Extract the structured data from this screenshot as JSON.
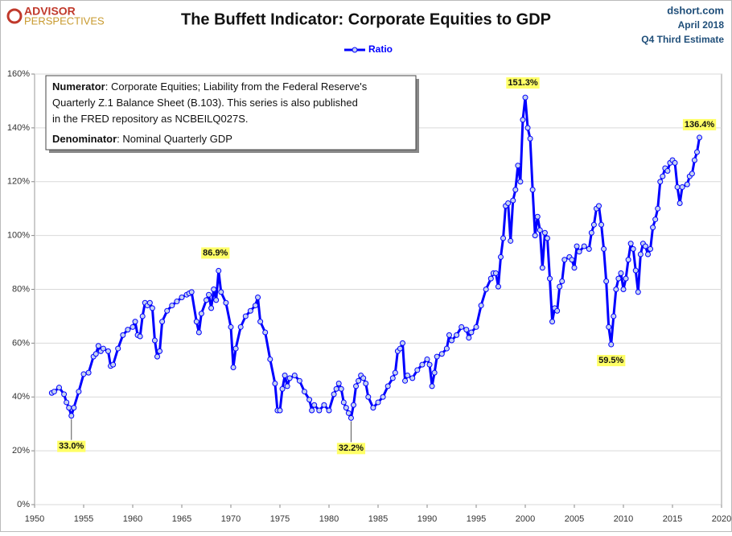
{
  "chart_data": {
    "type": "line",
    "title": "The Buffett Indicator: Corporate Equities to GDP",
    "logo": [
      "ADVISOR",
      "PERSPECTIVES"
    ],
    "source": [
      "dshort.com",
      "April 2018",
      "Q4 Third Estimate"
    ],
    "note": {
      "numerator_label": "Numerator",
      "numerator_lines": [
        ": Corporate Equities; Liability from the Federal Reserve's",
        "Quarterly Z.1 Balance Sheet (B.103). This series is also published",
        "in the FRED repository  as NCBEILQ027S."
      ],
      "denominator_label": "Denominator",
      "denominator_text": ": Nominal Quarterly GDP"
    },
    "xlim": [
      1950,
      2020
    ],
    "xticks": [
      1950,
      1955,
      1960,
      1965,
      1970,
      1975,
      1980,
      1985,
      1990,
      1995,
      2000,
      2005,
      2010,
      2015,
      2020
    ],
    "ylim": [
      0,
      160
    ],
    "yticks": [
      {
        "value": 0,
        "label": "0%"
      },
      {
        "value": 20,
        "label": "20%"
      },
      {
        "value": 40,
        "label": "40%"
      },
      {
        "value": 60,
        "label": "60%"
      },
      {
        "value": 80,
        "label": "80%"
      },
      {
        "value": 100,
        "label": "100%"
      },
      {
        "value": 120,
        "label": "120%"
      },
      {
        "value": 140,
        "label": "140%"
      },
      {
        "value": 160,
        "label": "160%"
      }
    ],
    "grid": true,
    "legend": "top",
    "x": [
      1951.75,
      1952,
      1952.5,
      1953,
      1953.25,
      1953.5,
      1953.75,
      1954,
      1954.5,
      1955,
      1955.5,
      1956,
      1956.25,
      1956.5,
      1956.75,
      1957,
      1957.5,
      1957.75,
      1958,
      1958.5,
      1959,
      1959.5,
      1960,
      1960.25,
      1960.5,
      1960.75,
      1961,
      1961.25,
      1961.5,
      1961.75,
      1962,
      1962.25,
      1962.5,
      1962.75,
      1963,
      1963.5,
      1964,
      1964.5,
      1965,
      1965.5,
      1965.75,
      1966,
      1966.5,
      1966.75,
      1967,
      1967.5,
      1967.75,
      1968,
      1968.25,
      1968.5,
      1968.75,
      1969,
      1969.5,
      1970,
      1970.25,
      1970.5,
      1971,
      1971.5,
      1972,
      1972.5,
      1972.75,
      1973,
      1973.5,
      1974,
      1974.5,
      1974.75,
      1975,
      1975.25,
      1975.5,
      1975.75,
      1976,
      1976.5,
      1977,
      1977.5,
      1978,
      1978.25,
      1978.5,
      1979,
      1979.5,
      1980,
      1980.5,
      1980.75,
      1981,
      1981.25,
      1981.5,
      1981.75,
      1982,
      1982.25,
      1982.5,
      1982.75,
      1983,
      1983.25,
      1983.5,
      1983.75,
      1984,
      1984.5,
      1985,
      1985.5,
      1986,
      1986.5,
      1986.75,
      1987,
      1987.25,
      1987.5,
      1987.75,
      1988,
      1988.5,
      1989,
      1989.5,
      1990,
      1990.25,
      1990.5,
      1990.75,
      1991,
      1991.5,
      1992,
      1992.25,
      1992.5,
      1993,
      1993.5,
      1994,
      1994.25,
      1994.5,
      1995,
      1995.5,
      1996,
      1996.5,
      1996.75,
      1997,
      1997.25,
      1997.5,
      1997.75,
      1998,
      1998.25,
      1998.5,
      1998.75,
      1999,
      1999.25,
      1999.5,
      1999.75,
      2000,
      2000.25,
      2000.5,
      2000.75,
      2001,
      2001.25,
      2001.5,
      2001.75,
      2002,
      2002.25,
      2002.5,
      2002.75,
      2003,
      2003.25,
      2003.5,
      2003.75,
      2004,
      2004.5,
      2004.75,
      2005,
      2005.25,
      2005.5,
      2006,
      2006.5,
      2006.75,
      2007,
      2007.25,
      2007.5,
      2007.75,
      2008,
      2008.25,
      2008.5,
      2008.75,
      2009,
      2009.25,
      2009.5,
      2009.75,
      2010,
      2010.25,
      2010.5,
      2010.75,
      2011,
      2011.25,
      2011.5,
      2011.75,
      2012,
      2012.25,
      2012.5,
      2012.75,
      2013,
      2013.25,
      2013.5,
      2013.75,
      2014,
      2014.25,
      2014.5,
      2014.75,
      2015,
      2015.25,
      2015.5,
      2015.75,
      2016,
      2016.5,
      2016.75,
      2017,
      2017.25,
      2017.5,
      2017.75
    ],
    "series": [
      {
        "name": "Ratio",
        "color": "#0000ff",
        "values": [
          41.5,
          42,
          43.5,
          41,
          38,
          36,
          33.0,
          36,
          42,
          48.5,
          49,
          55,
          56,
          59,
          57,
          58,
          57,
          51.5,
          52,
          58,
          63,
          65,
          66,
          68,
          63,
          62.5,
          70,
          75,
          74,
          75,
          73,
          61,
          55,
          57,
          68,
          72,
          74,
          75.5,
          77,
          78,
          78.5,
          79,
          68,
          64,
          71,
          76,
          78,
          73,
          80,
          76,
          86.9,
          79,
          75,
          66,
          51,
          58,
          66,
          70,
          72,
          74,
          77,
          68,
          64,
          54,
          45,
          35,
          35,
          43,
          48,
          44,
          47,
          48,
          46,
          42,
          39,
          35,
          37,
          35,
          37,
          35,
          41,
          43,
          45,
          43,
          38,
          36,
          34,
          32.2,
          37,
          44,
          46,
          48,
          47,
          45,
          40,
          36,
          38,
          40,
          44,
          47,
          49,
          57,
          58,
          60,
          46,
          48,
          47,
          50,
          52,
          54,
          52,
          44,
          49,
          55,
          56,
          58,
          63,
          61,
          63,
          66,
          65,
          62,
          64,
          66,
          74,
          80,
          84,
          86,
          86,
          81,
          92,
          99,
          111,
          112,
          98,
          113,
          117,
          126,
          120,
          143,
          151.3,
          140,
          136,
          117,
          100,
          107,
          102,
          88,
          101,
          99,
          84,
          68,
          73,
          72,
          81,
          83,
          91,
          92,
          91,
          88,
          96,
          94,
          96,
          95,
          101,
          104,
          110,
          111,
          104,
          95,
          83,
          66,
          59.5,
          70,
          80,
          84,
          86,
          80,
          84,
          91,
          97,
          95,
          87,
          79,
          93,
          97,
          96,
          93,
          95,
          103,
          106,
          110,
          120,
          122,
          125,
          124,
          127,
          128,
          127,
          118,
          112,
          118,
          119,
          122,
          123,
          128,
          131,
          136.4
        ]
      }
    ],
    "annotations": [
      {
        "x": 1953.75,
        "y": 33.0,
        "label": "33.0%"
      },
      {
        "x": 1982.25,
        "y": 32.2,
        "label": "32.2%"
      },
      {
        "x": 1968.75,
        "y": 86.9,
        "label": "86.9%"
      },
      {
        "x": 2000,
        "y": 151.3,
        "label": "151.3%"
      },
      {
        "x": 2008.75,
        "y": 59.5,
        "label": "59.5%"
      },
      {
        "x": 2017.75,
        "y": 136.4,
        "label": "136.4%"
      }
    ]
  }
}
